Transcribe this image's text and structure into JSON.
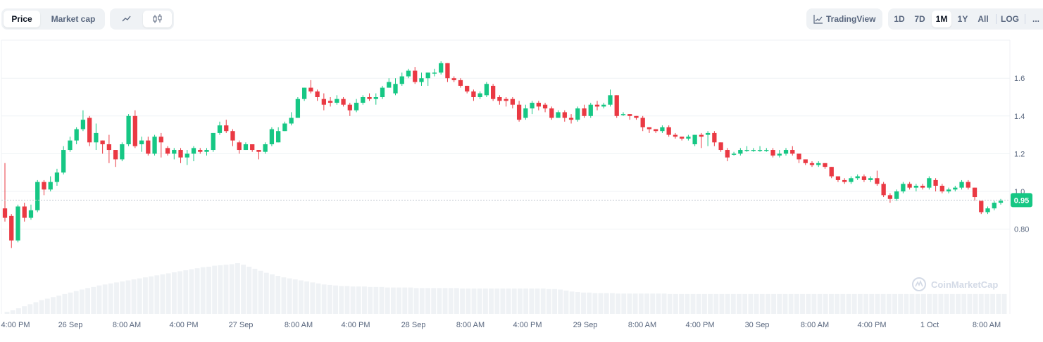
{
  "toolbar": {
    "metric_tabs": [
      {
        "label": "Price",
        "active": true
      },
      {
        "label": "Market cap",
        "active": false
      }
    ],
    "chart_mode_icons": [
      {
        "icon": "line-chart-icon",
        "active": false
      },
      {
        "icon": "candlestick-icon",
        "active": true
      }
    ],
    "tradingview_label": "TradingView",
    "ranges": [
      {
        "label": "1D",
        "active": false
      },
      {
        "label": "7D",
        "active": false
      },
      {
        "label": "1M",
        "active": true
      },
      {
        "label": "1Y",
        "active": false
      },
      {
        "label": "All",
        "active": false
      },
      {
        "label": "LOG",
        "active": false
      }
    ],
    "more_label": "..."
  },
  "watermark": "CoinMarketCap",
  "colors": {
    "up": "#16c784",
    "down": "#ea3943",
    "volume": "#eff2f5",
    "grid": "#eff2f5",
    "text": "#58667e"
  },
  "chart_data": {
    "type": "candlestick",
    "title": "",
    "xlabel": "",
    "ylabel": "",
    "y_ticks": [
      "0.80",
      "1.0",
      "1.2",
      "1.4",
      "1.6"
    ],
    "ylim": [
      0.55,
      1.76
    ],
    "grid": true,
    "current_price_label": "0.95",
    "current_price": 0.95,
    "x_tick_labels": [
      "4:00 PM",
      "26 Sep",
      "8:00 AM",
      "4:00 PM",
      "27 Sep",
      "8:00 AM",
      "4:00 PM",
      "28 Sep",
      "8:00 AM",
      "4:00 PM",
      "29 Sep",
      "8:00 AM",
      "4:00 PM",
      "30 Sep",
      "8:00 AM",
      "4:00 PM",
      "1 Oct",
      "8:00 AM"
    ],
    "candles": [
      [
        0.91,
        0.86,
        1.15,
        0.84
      ],
      [
        0.87,
        0.74,
        0.88,
        0.7
      ],
      [
        0.74,
        0.92,
        0.93,
        0.73
      ],
      [
        0.92,
        0.86,
        0.94,
        0.84
      ],
      [
        0.86,
        0.9,
        0.93,
        0.85
      ],
      [
        0.9,
        1.05,
        1.06,
        0.89
      ],
      [
        1.05,
        1.01,
        1.06,
        0.98
      ],
      [
        1.01,
        1.05,
        1.08,
        1.0
      ],
      [
        1.05,
        1.1,
        1.12,
        1.03
      ],
      [
        1.1,
        1.22,
        1.24,
        1.09
      ],
      [
        1.22,
        1.27,
        1.29,
        1.21
      ],
      [
        1.27,
        1.33,
        1.34,
        1.25
      ],
      [
        1.33,
        1.38,
        1.43,
        1.32
      ],
      [
        1.39,
        1.26,
        1.4,
        1.24
      ],
      [
        1.26,
        1.31,
        1.36,
        1.22
      ],
      [
        1.27,
        1.25,
        1.27,
        1.2
      ],
      [
        1.25,
        1.22,
        1.3,
        1.15
      ],
      [
        1.22,
        1.17,
        1.21,
        1.13
      ],
      [
        1.17,
        1.25,
        1.26,
        1.16
      ],
      [
        1.25,
        1.4,
        1.41,
        1.24
      ],
      [
        1.4,
        1.24,
        1.43,
        1.23
      ],
      [
        1.25,
        1.27,
        1.29,
        1.21
      ],
      [
        1.27,
        1.2,
        1.29,
        1.19
      ],
      [
        1.2,
        1.29,
        1.3,
        1.19
      ],
      [
        1.29,
        1.26,
        1.31,
        1.18
      ],
      [
        1.23,
        1.2,
        1.24,
        1.19
      ],
      [
        1.2,
        1.22,
        1.23,
        1.17
      ],
      [
        1.22,
        1.18,
        1.23,
        1.15
      ],
      [
        1.18,
        1.2,
        1.22,
        1.14
      ],
      [
        1.2,
        1.23,
        1.24,
        1.16
      ],
      [
        1.22,
        1.21,
        1.23,
        1.2
      ],
      [
        1.21,
        1.22,
        1.23,
        1.19
      ],
      [
        1.22,
        1.31,
        1.31,
        1.21
      ],
      [
        1.31,
        1.35,
        1.37,
        1.3
      ],
      [
        1.35,
        1.32,
        1.38,
        1.31
      ],
      [
        1.32,
        1.27,
        1.33,
        1.24
      ],
      [
        1.26,
        1.22,
        1.27,
        1.2
      ],
      [
        1.22,
        1.25,
        1.26,
        1.22
      ],
      [
        1.25,
        1.22,
        1.25,
        1.21
      ],
      [
        1.22,
        1.21,
        1.22,
        1.17
      ],
      [
        1.21,
        1.25,
        1.26,
        1.2
      ],
      [
        1.25,
        1.33,
        1.34,
        1.24
      ],
      [
        1.26,
        1.32,
        1.34,
        1.26
      ],
      [
        1.32,
        1.36,
        1.37,
        1.32
      ],
      [
        1.36,
        1.39,
        1.42,
        1.35
      ],
      [
        1.39,
        1.49,
        1.5,
        1.39
      ],
      [
        1.49,
        1.55,
        1.55,
        1.48
      ],
      [
        1.55,
        1.53,
        1.59,
        1.52
      ],
      [
        1.53,
        1.5,
        1.54,
        1.48
      ],
      [
        1.49,
        1.46,
        1.52,
        1.43
      ],
      [
        1.48,
        1.47,
        1.5,
        1.45
      ],
      [
        1.47,
        1.49,
        1.51,
        1.46
      ],
      [
        1.49,
        1.46,
        1.5,
        1.45
      ],
      [
        1.46,
        1.43,
        1.47,
        1.4
      ],
      [
        1.43,
        1.47,
        1.49,
        1.42
      ],
      [
        1.47,
        1.5,
        1.51,
        1.46
      ],
      [
        1.5,
        1.49,
        1.52,
        1.48
      ],
      [
        1.49,
        1.5,
        1.52,
        1.46
      ],
      [
        1.5,
        1.55,
        1.56,
        1.49
      ],
      [
        1.55,
        1.58,
        1.6,
        1.55
      ],
      [
        1.52,
        1.57,
        1.6,
        1.51
      ],
      [
        1.57,
        1.61,
        1.63,
        1.56
      ],
      [
        1.61,
        1.64,
        1.65,
        1.6
      ],
      [
        1.64,
        1.58,
        1.66,
        1.57
      ],
      [
        1.58,
        1.6,
        1.63,
        1.56
      ],
      [
        1.6,
        1.63,
        1.63,
        1.56
      ],
      [
        1.63,
        1.63,
        1.65,
        1.61
      ],
      [
        1.63,
        1.68,
        1.69,
        1.62
      ],
      [
        1.68,
        1.6,
        1.68,
        1.58
      ],
      [
        1.6,
        1.59,
        1.61,
        1.58
      ],
      [
        1.59,
        1.56,
        1.6,
        1.55
      ],
      [
        1.56,
        1.53,
        1.56,
        1.52
      ],
      [
        1.53,
        1.5,
        1.54,
        1.48
      ],
      [
        1.5,
        1.52,
        1.53,
        1.49
      ],
      [
        1.51,
        1.57,
        1.58,
        1.5
      ],
      [
        1.56,
        1.49,
        1.57,
        1.48
      ],
      [
        1.5,
        1.48,
        1.51,
        1.46
      ],
      [
        1.49,
        1.48,
        1.5,
        1.45
      ],
      [
        1.49,
        1.46,
        1.5,
        1.44
      ],
      [
        1.46,
        1.38,
        1.48,
        1.37
      ],
      [
        1.39,
        1.44,
        1.46,
        1.38
      ],
      [
        1.44,
        1.47,
        1.48,
        1.41
      ],
      [
        1.47,
        1.45,
        1.48,
        1.43
      ],
      [
        1.46,
        1.44,
        1.47,
        1.42
      ],
      [
        1.44,
        1.39,
        1.45,
        1.38
      ],
      [
        1.39,
        1.42,
        1.43,
        1.4
      ],
      [
        1.42,
        1.39,
        1.43,
        1.37
      ],
      [
        1.39,
        1.38,
        1.41,
        1.36
      ],
      [
        1.38,
        1.44,
        1.45,
        1.37
      ],
      [
        1.44,
        1.4,
        1.46,
        1.39
      ],
      [
        1.4,
        1.46,
        1.47,
        1.39
      ],
      [
        1.46,
        1.45,
        1.48,
        1.43
      ],
      [
        1.45,
        1.46,
        1.47,
        1.44
      ],
      [
        1.46,
        1.51,
        1.54,
        1.45
      ],
      [
        1.51,
        1.4,
        1.51,
        1.39
      ],
      [
        1.41,
        1.41,
        1.42,
        1.4
      ],
      [
        1.41,
        1.4,
        1.41,
        1.38
      ],
      [
        1.4,
        1.39,
        1.4,
        1.38
      ],
      [
        1.39,
        1.34,
        1.4,
        1.32
      ],
      [
        1.34,
        1.33,
        1.34,
        1.31
      ],
      [
        1.33,
        1.32,
        1.33,
        1.31
      ],
      [
        1.32,
        1.34,
        1.35,
        1.31
      ],
      [
        1.34,
        1.3,
        1.35,
        1.29
      ],
      [
        1.3,
        1.29,
        1.31,
        1.28
      ],
      [
        1.29,
        1.28,
        1.29,
        1.27
      ],
      [
        1.28,
        1.29,
        1.3,
        1.27
      ],
      [
        1.25,
        1.3,
        1.3,
        1.24
      ],
      [
        1.3,
        1.29,
        1.31,
        1.23
      ],
      [
        1.3,
        1.31,
        1.32,
        1.24
      ],
      [
        1.31,
        1.26,
        1.32,
        1.24
      ],
      [
        1.26,
        1.22,
        1.26,
        1.21
      ],
      [
        1.22,
        1.18,
        1.23,
        1.16
      ],
      [
        1.2,
        1.2,
        1.21,
        1.19
      ],
      [
        1.2,
        1.22,
        1.23,
        1.19
      ],
      [
        1.22,
        1.22,
        1.24,
        1.21
      ],
      [
        1.22,
        1.22,
        1.23,
        1.21
      ],
      [
        1.22,
        1.22,
        1.24,
        1.21
      ],
      [
        1.22,
        1.22,
        1.23,
        1.21
      ],
      [
        1.22,
        1.19,
        1.23,
        1.18
      ],
      [
        1.19,
        1.2,
        1.22,
        1.18
      ],
      [
        1.2,
        1.22,
        1.23,
        1.19
      ],
      [
        1.22,
        1.2,
        1.24,
        1.19
      ],
      [
        1.2,
        1.17,
        1.2,
        1.15
      ],
      [
        1.17,
        1.15,
        1.17,
        1.14
      ],
      [
        1.15,
        1.14,
        1.16,
        1.13
      ],
      [
        1.14,
        1.15,
        1.16,
        1.13
      ],
      [
        1.15,
        1.13,
        1.15,
        1.12
      ],
      [
        1.13,
        1.08,
        1.13,
        1.07
      ],
      [
        1.08,
        1.06,
        1.08,
        1.05
      ],
      [
        1.06,
        1.05,
        1.07,
        1.04
      ],
      [
        1.05,
        1.07,
        1.08,
        1.04
      ],
      [
        1.07,
        1.08,
        1.09,
        1.06
      ],
      [
        1.08,
        1.06,
        1.09,
        1.05
      ],
      [
        1.06,
        1.07,
        1.08,
        1.05
      ],
      [
        1.07,
        1.04,
        1.11,
        1.03
      ],
      [
        1.04,
        0.98,
        1.05,
        0.97
      ],
      [
        0.98,
        0.96,
        0.99,
        0.94
      ],
      [
        0.96,
        1.0,
        1.01,
        0.95
      ],
      [
        1.0,
        1.04,
        1.05,
        0.99
      ],
      [
        1.04,
        1.02,
        1.05,
        1.01
      ],
      [
        1.02,
        1.03,
        1.04,
        1.0
      ],
      [
        1.03,
        1.02,
        1.04,
        1.01
      ],
      [
        1.02,
        1.07,
        1.08,
        1.01
      ],
      [
        1.06,
        1.03,
        1.07,
        1.0
      ],
      [
        1.03,
        1.0,
        1.04,
        0.99
      ],
      [
        1.0,
        1.01,
        1.02,
        0.99
      ],
      [
        1.01,
        1.02,
        1.03,
        1.0
      ],
      [
        1.02,
        1.05,
        1.06,
        1.01
      ],
      [
        1.05,
        1.02,
        1.06,
        1.01
      ],
      [
        1.02,
        0.97,
        1.02,
        0.95
      ],
      [
        0.95,
        0.89,
        0.95,
        0.88
      ],
      [
        0.89,
        0.91,
        0.92,
        0.88
      ],
      [
        0.91,
        0.94,
        0.95,
        0.9
      ],
      [
        0.94,
        0.95,
        0.96,
        0.93
      ]
    ],
    "volume_relative": [
      0.04,
      0.07,
      0.11,
      0.15,
      0.19,
      0.23,
      0.27,
      0.3,
      0.33,
      0.36,
      0.39,
      0.42,
      0.45,
      0.48,
      0.51,
      0.53,
      0.56,
      0.58,
      0.6,
      0.62,
      0.64,
      0.66,
      0.68,
      0.7,
      0.72,
      0.74,
      0.76,
      0.78,
      0.8,
      0.82,
      0.84,
      0.86,
      0.88,
      0.9,
      0.92,
      0.93,
      0.95,
      0.96,
      0.97,
      0.98,
      1.0,
      0.97,
      0.93,
      0.89,
      0.85,
      0.81,
      0.78,
      0.75,
      0.72,
      0.7,
      0.68,
      0.66,
      0.64,
      0.62,
      0.6,
      0.58,
      0.57,
      0.56,
      0.55,
      0.55,
      0.54,
      0.54,
      0.54,
      0.53,
      0.53,
      0.53,
      0.52,
      0.52,
      0.52,
      0.52,
      0.52,
      0.51,
      0.51,
      0.51,
      0.51,
      0.51,
      0.51,
      0.51,
      0.51,
      0.5,
      0.5,
      0.5,
      0.5,
      0.5,
      0.5,
      0.5,
      0.5,
      0.5,
      0.5,
      0.5,
      0.5,
      0.5,
      0.5,
      0.5,
      0.49,
      0.49,
      0.48,
      0.46,
      0.44,
      0.43,
      0.42,
      0.42,
      0.41,
      0.41,
      0.41,
      0.41,
      0.4,
      0.4,
      0.4,
      0.4,
      0.4,
      0.4,
      0.4,
      0.4,
      0.4,
      0.39,
      0.39,
      0.39,
      0.39,
      0.39,
      0.39,
      0.39,
      0.39,
      0.39,
      0.39,
      0.39,
      0.39,
      0.39,
      0.39,
      0.39,
      0.39,
      0.39,
      0.39,
      0.39,
      0.39,
      0.39,
      0.39,
      0.39,
      0.39,
      0.39,
      0.39,
      0.39,
      0.39,
      0.39,
      0.39,
      0.39,
      0.39,
      0.39,
      0.39,
      0.39,
      0.39,
      0.39,
      0.39,
      0.39,
      0.39,
      0.39,
      0.39,
      0.39,
      0.39,
      0.39,
      0.39,
      0.39,
      0.39,
      0.39,
      0.39,
      0.39,
      0.39,
      0.39,
      0.39,
      0.39,
      0.39,
      0.39,
      0.39,
      0.39
    ]
  }
}
